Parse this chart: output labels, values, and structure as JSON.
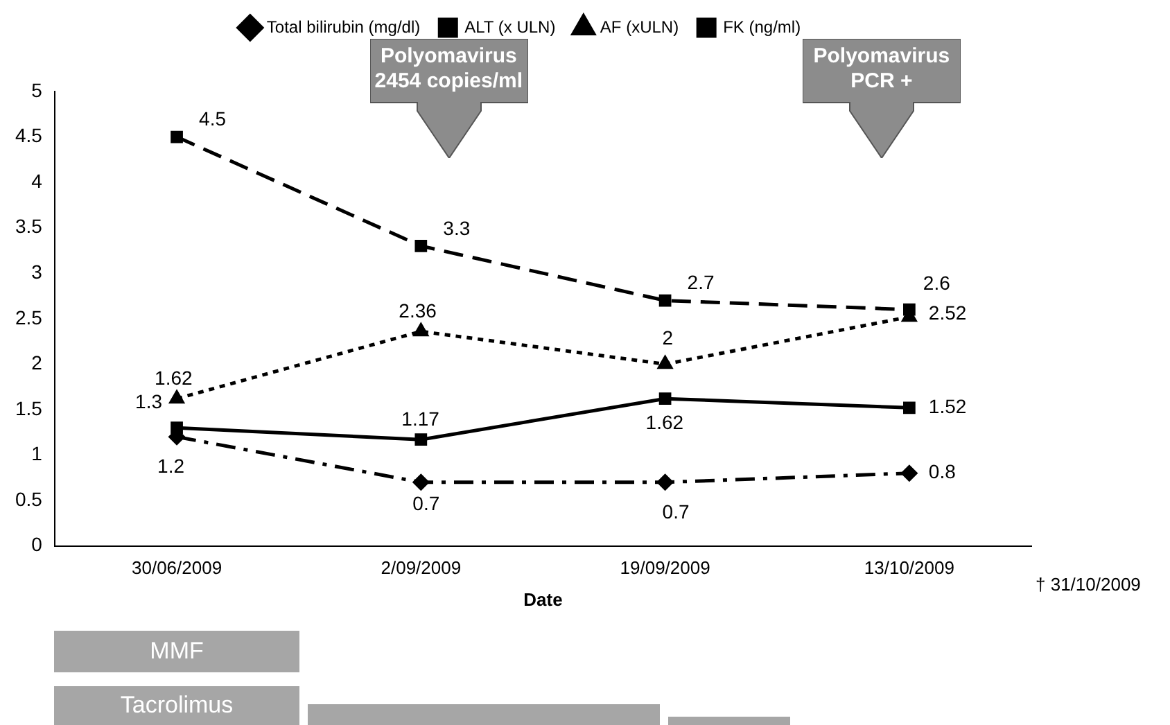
{
  "chart_data": {
    "type": "line",
    "xlabel": "Date",
    "categories": [
      "30/06/2009",
      "2/09/2009",
      "19/09/2009",
      "13/10/2009"
    ],
    "series": [
      {
        "name": "Total bilirubin (mg/dl)",
        "color": "#000000",
        "marker": "diamond",
        "line_style": "dashdot",
        "values": [
          1.2,
          0.7,
          0.7,
          0.8
        ]
      },
      {
        "name": "ALT (x ULN)",
        "color": "#000000",
        "marker": "square",
        "line_style": "solid",
        "values": [
          1.3,
          1.17,
          1.62,
          1.52
        ]
      },
      {
        "name": "AF (xULN)",
        "color": "#000000",
        "marker": "triangle",
        "line_style": "dotted",
        "values": [
          1.62,
          2.36,
          2,
          2.52
        ]
      },
      {
        "name": "FK (ng/ml)",
        "color": "#000000",
        "marker": "square",
        "line_style": "dashed",
        "values": [
          4.5,
          3.3,
          2.7,
          2.6
        ]
      }
    ],
    "ylim": [
      0,
      5
    ],
    "yticks": [
      0,
      0.5,
      1,
      1.5,
      2,
      2.5,
      3,
      3.5,
      4,
      4.5,
      5
    ],
    "grid": false,
    "legend": "top",
    "data_labels": true,
    "annotations": [
      "Polyomavirus 2454 copies/ml",
      "Polyomavirus PCR +",
      "† 31/10/2009",
      "MMF",
      "Tacrolimus"
    ]
  }
}
